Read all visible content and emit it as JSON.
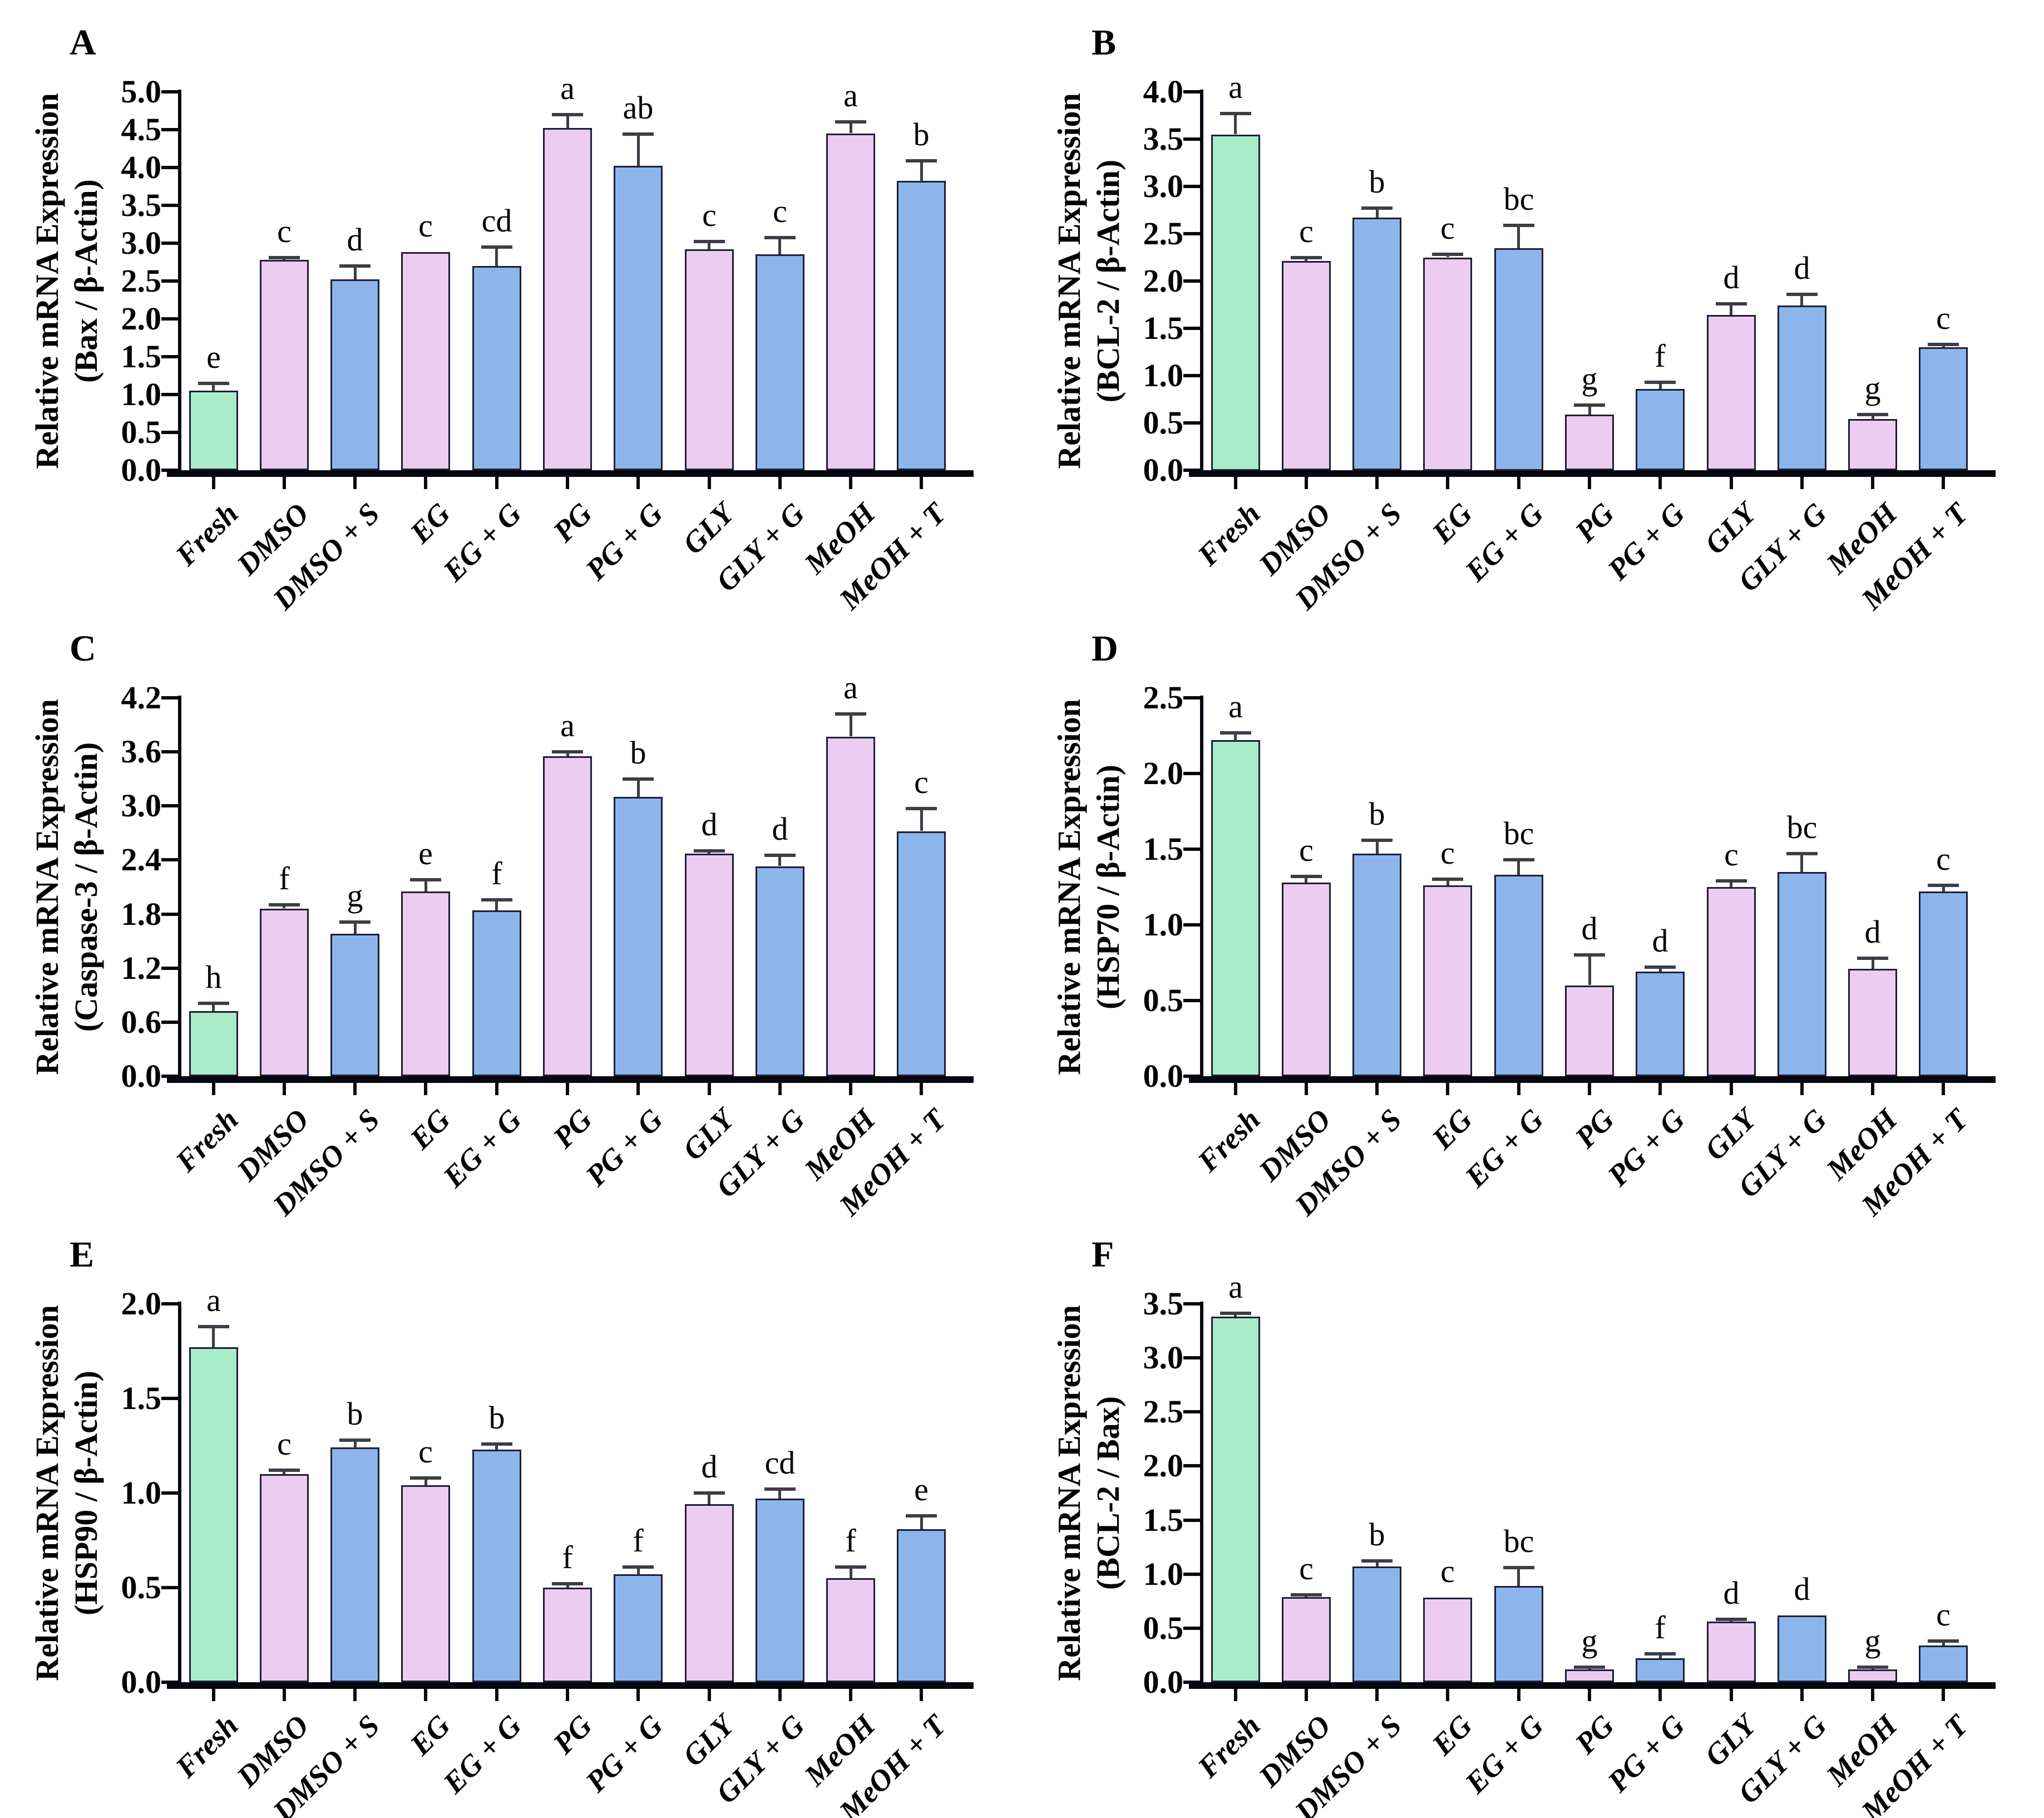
{
  "figure": {
    "palette": {
      "green": "#a9ecc9",
      "pink": "#ecccf0",
      "blue": "#8cb5ec",
      "bar_border": "#1e1e36",
      "error_bar": "#3d3d46",
      "axis": "#06060f",
      "text": "#000000",
      "background": "#ffffff"
    },
    "bar_color_keys": [
      "green",
      "pink",
      "blue",
      "pink",
      "blue",
      "pink",
      "blue",
      "pink",
      "blue",
      "pink",
      "blue"
    ]
  },
  "chart_data": [
    {
      "type": "bar",
      "panel_label": "A",
      "ylabel": "Relative mRNA Expression (Bax / β-Actin)",
      "ylabel_line1": "Relative mRNA Expression",
      "ylabel_line2": "(Bax / β-Actin)",
      "ymax": 5.0,
      "ytick_step": 0.5,
      "ylim": [
        0,
        5.0
      ],
      "yticks": [
        "0.0",
        "0.5",
        "1.0",
        "1.5",
        "2.0",
        "2.5",
        "3.0",
        "3.5",
        "4.0",
        "4.5",
        "5.0"
      ],
      "categories": [
        "Fresh",
        "DMSO",
        "DMSO + S",
        "EG",
        "EG + G",
        "PG",
        "PG + G",
        "GLY",
        "GLY + G",
        "MeOH",
        "MeOH + T"
      ],
      "values": [
        1.05,
        2.78,
        2.52,
        2.88,
        2.7,
        4.52,
        4.02,
        2.92,
        2.85,
        4.45,
        3.82
      ],
      "errors": [
        0.1,
        0.03,
        0.18,
        0.0,
        0.25,
        0.18,
        0.42,
        0.1,
        0.22,
        0.15,
        0.27
      ],
      "sig_letters": [
        "e",
        "c",
        "d",
        "c",
        "cd",
        "a",
        "ab",
        "c",
        "c",
        "a",
        "b"
      ]
    },
    {
      "type": "bar",
      "panel_label": "B",
      "ylabel": "Relative mRNA Expression (BCL-2 / β-Actin)",
      "ylabel_line1": "Relative mRNA Expression",
      "ylabel_line2": "(BCL-2 / β-Actin)",
      "ymax": 4.0,
      "ytick_step": 0.5,
      "ylim": [
        0,
        4.0
      ],
      "yticks": [
        "0.0",
        "0.5",
        "1.0",
        "1.5",
        "2.0",
        "2.5",
        "3.0",
        "3.5",
        "4.0"
      ],
      "categories": [
        "Fresh",
        "DMSO",
        "DMSO + S",
        "EG",
        "EG + G",
        "PG",
        "PG + G",
        "GLY",
        "GLY + G",
        "MeOH",
        "MeOH + T"
      ],
      "values": [
        3.55,
        2.21,
        2.67,
        2.25,
        2.35,
        0.59,
        0.86,
        1.64,
        1.74,
        0.54,
        1.3
      ],
      "errors": [
        0.22,
        0.04,
        0.1,
        0.03,
        0.24,
        0.1,
        0.07,
        0.12,
        0.12,
        0.05,
        0.03
      ],
      "sig_letters": [
        "a",
        "c",
        "b",
        "c",
        "bc",
        "g",
        "f",
        "d",
        "d",
        "g",
        "c"
      ]
    },
    {
      "type": "bar",
      "panel_label": "C",
      "ylabel": "Relative mRNA Expression (Caspase-3 / β-Actin)",
      "ylabel_line1": "Relative mRNA Expression",
      "ylabel_line2": "(Caspase-3 / β-Actin)",
      "ymax": 4.2,
      "ytick_step": 0.6,
      "ylim": [
        0,
        4.2
      ],
      "yticks": [
        "0.0",
        "0.6",
        "1.2",
        "1.8",
        "2.4",
        "3.0",
        "3.6",
        "4.2"
      ],
      "categories": [
        "Fresh",
        "DMSO",
        "DMSO + S",
        "EG",
        "EG + G",
        "PG",
        "PG + G",
        "GLY",
        "GLY + G",
        "MeOH",
        "MeOH + T"
      ],
      "values": [
        0.72,
        1.86,
        1.58,
        2.05,
        1.84,
        3.55,
        3.1,
        2.47,
        2.33,
        3.77,
        2.72
      ],
      "errors": [
        0.09,
        0.04,
        0.13,
        0.13,
        0.12,
        0.05,
        0.2,
        0.03,
        0.12,
        0.25,
        0.25
      ],
      "sig_letters": [
        "h",
        "f",
        "g",
        "e",
        "f",
        "a",
        "b",
        "d",
        "d",
        "a",
        "c"
      ]
    },
    {
      "type": "bar",
      "panel_label": "D",
      "ylabel": "Relative mRNA Expression (HSP70 / β-Actin)",
      "ylabel_line1": "Relative mRNA Expression",
      "ylabel_line2": "(HSP70 / β-Actin)",
      "ymax": 2.5,
      "ytick_step": 0.5,
      "ylim": [
        0,
        2.5
      ],
      "yticks": [
        "0.0",
        "0.5",
        "1.0",
        "1.5",
        "2.0",
        "2.5"
      ],
      "categories": [
        "Fresh",
        "DMSO",
        "DMSO + S",
        "EG",
        "EG + G",
        "PG",
        "PG + G",
        "GLY",
        "GLY + G",
        "MeOH",
        "MeOH + T"
      ],
      "values": [
        2.22,
        1.28,
        1.47,
        1.26,
        1.33,
        0.6,
        0.69,
        1.25,
        1.35,
        0.71,
        1.22
      ],
      "errors": [
        0.05,
        0.04,
        0.09,
        0.04,
        0.1,
        0.2,
        0.03,
        0.04,
        0.12,
        0.07,
        0.04
      ],
      "sig_letters": [
        "a",
        "c",
        "b",
        "c",
        "bc",
        "d",
        "d",
        "c",
        "bc",
        "d",
        "c"
      ]
    },
    {
      "type": "bar",
      "panel_label": "E",
      "ylabel": "Relative mRNA Expression (HSP90 / β-Actin)",
      "ylabel_line1": "Relative mRNA Expression",
      "ylabel_line2": "(HSP90 / β-Actin)",
      "ymax": 2.0,
      "ytick_step": 0.5,
      "ylim": [
        0,
        2.0
      ],
      "yticks": [
        "0.0",
        "0.5",
        "1.0",
        "1.5",
        "2.0"
      ],
      "categories": [
        "Fresh",
        "DMSO",
        "DMSO + S",
        "EG",
        "EG + G",
        "PG",
        "PG + G",
        "GLY",
        "GLY + G",
        "MeOH",
        "MeOH + T"
      ],
      "values": [
        1.77,
        1.1,
        1.24,
        1.04,
        1.23,
        0.5,
        0.57,
        0.94,
        0.97,
        0.55,
        0.81
      ],
      "errors": [
        0.11,
        0.02,
        0.04,
        0.04,
        0.03,
        0.02,
        0.04,
        0.06,
        0.05,
        0.06,
        0.07
      ],
      "sig_letters": [
        "a",
        "c",
        "b",
        "c",
        "b",
        "f",
        "f",
        "d",
        "cd",
        "f",
        "e"
      ]
    },
    {
      "type": "bar",
      "panel_label": "F",
      "ylabel": "Relative mRNA Expression (BCL-2 / Bax)",
      "ylabel_line1": "Relative mRNA Expression",
      "ylabel_line2": "(BCL-2 / Bax)",
      "ymax": 3.5,
      "ytick_step": 0.5,
      "ylim": [
        0,
        3.5
      ],
      "yticks": [
        "0.0",
        "0.5",
        "1.0",
        "1.5",
        "2.0",
        "2.5",
        "3.0",
        "3.5"
      ],
      "categories": [
        "Fresh",
        "DMSO",
        "DMSO + S",
        "EG",
        "EG + G",
        "PG",
        "PG + G",
        "GLY",
        "GLY + G",
        "MeOH",
        "MeOH + T"
      ],
      "values": [
        3.38,
        0.79,
        1.07,
        0.78,
        0.89,
        0.12,
        0.22,
        0.56,
        0.62,
        0.12,
        0.34
      ],
      "errors": [
        0.03,
        0.02,
        0.05,
        0.0,
        0.17,
        0.02,
        0.04,
        0.02,
        0.0,
        0.02,
        0.04
      ],
      "sig_letters": [
        "a",
        "c",
        "b",
        "c",
        "bc",
        "g",
        "f",
        "d",
        "d",
        "g",
        "c"
      ]
    }
  ]
}
